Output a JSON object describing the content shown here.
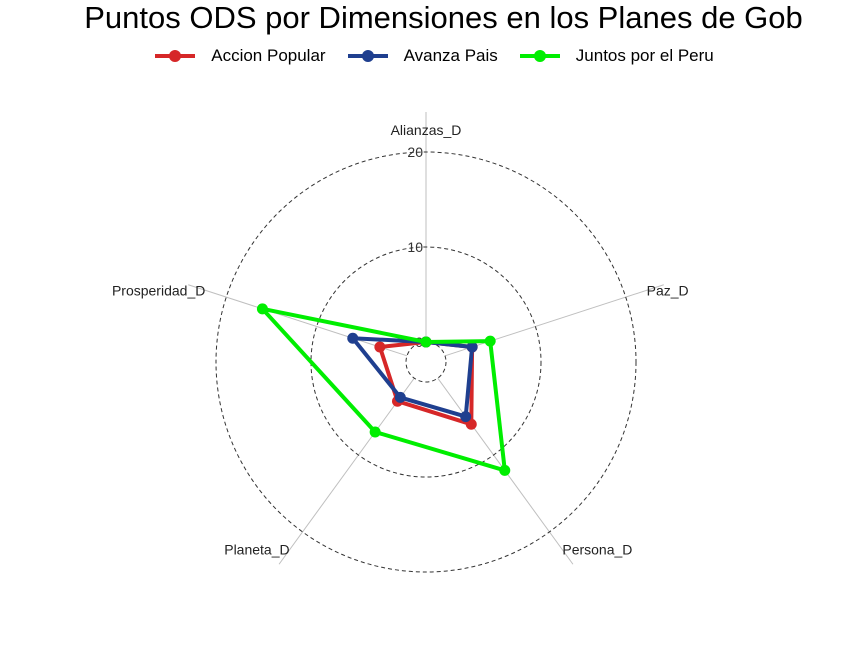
{
  "chart_data": {
    "type": "radar",
    "title": "Puntos ODS por Dimensiones en los Planes de Gob",
    "axes": [
      "Alianzas_D",
      "Paz_D",
      "Persona_D",
      "Planeta_D",
      "Prosperidad_D"
    ],
    "rlim": [
      0,
      20
    ],
    "r_ticks": [
      0,
      10,
      20
    ],
    "grid": true,
    "legend_position": "top",
    "series": [
      {
        "name": "Accion Popular",
        "color": "#d62728",
        "values": [
          0,
          3,
          6,
          3,
          3
        ]
      },
      {
        "name": "Avanza Pais",
        "color": "#1f3f8f",
        "values": [
          0,
          3,
          5,
          2.5,
          6
        ]
      },
      {
        "name": "Juntos por el Peru",
        "color": "#00ee00",
        "values": [
          0,
          5,
          12,
          7,
          16
        ]
      }
    ]
  }
}
